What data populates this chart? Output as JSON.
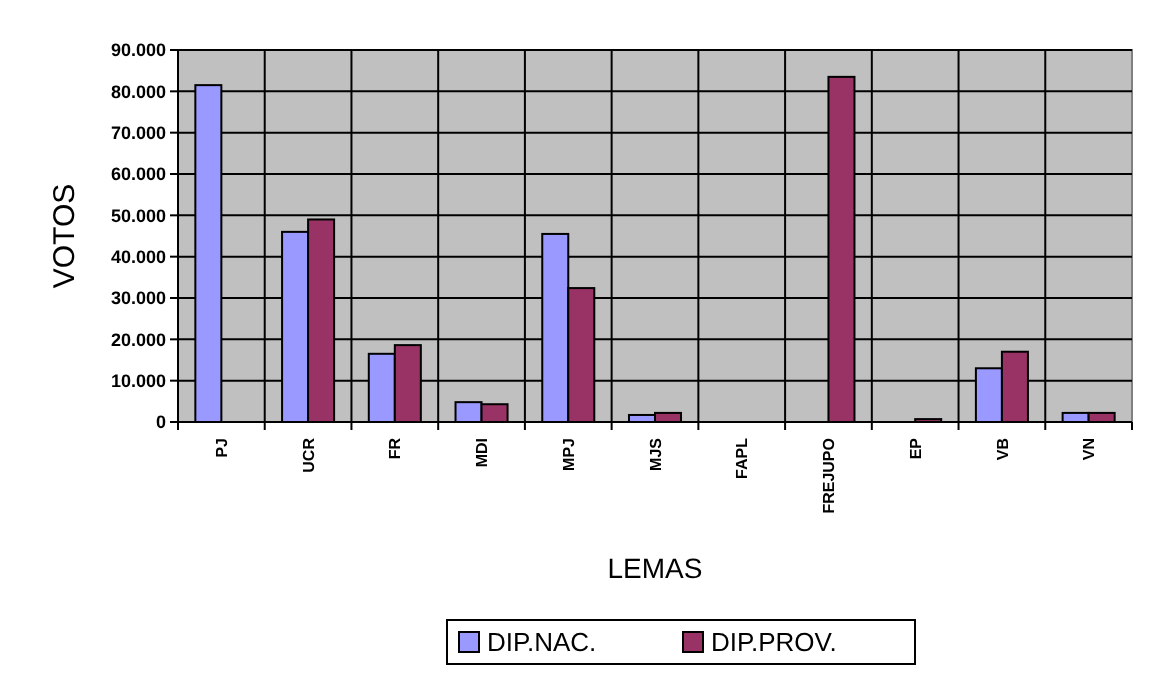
{
  "chart_data": {
    "type": "bar",
    "xlabel": "LEMAS",
    "ylabel": "VOTOS",
    "categories": [
      "PJ",
      "UCR",
      "FR",
      "MDI",
      "MPJ",
      "MJS",
      "FAPL",
      "FREJUPO",
      "EP",
      "VB",
      "VN"
    ],
    "series": [
      {
        "name": "DIP.NAC.",
        "color": "#9999ff",
        "values": [
          81500,
          46000,
          16500,
          4800,
          45500,
          1700,
          0,
          0,
          0,
          13000,
          2200
        ]
      },
      {
        "name": "DIP.PROV.",
        "color": "#993366",
        "values": [
          0,
          49000,
          18600,
          4300,
          32400,
          2200,
          0,
          83500,
          700,
          17000,
          2200
        ]
      }
    ],
    "ylim": [
      0,
      90000
    ],
    "yticks": [
      0,
      {
        "value": 10000,
        "label": "10.000"
      },
      {
        "value": 20000,
        "label": "20.000"
      },
      {
        "value": 30000,
        "label": "30.000"
      },
      {
        "value": 40000,
        "label": "40.000"
      },
      {
        "value": 50000,
        "label": "50.000"
      },
      {
        "value": 60000,
        "label": "60.000"
      },
      {
        "value": 70000,
        "label": "70.000"
      },
      {
        "value": 80000,
        "label": "80.000"
      },
      {
        "value": 90000,
        "label": "90.000"
      }
    ],
    "grid": true,
    "legend": "bottom"
  }
}
